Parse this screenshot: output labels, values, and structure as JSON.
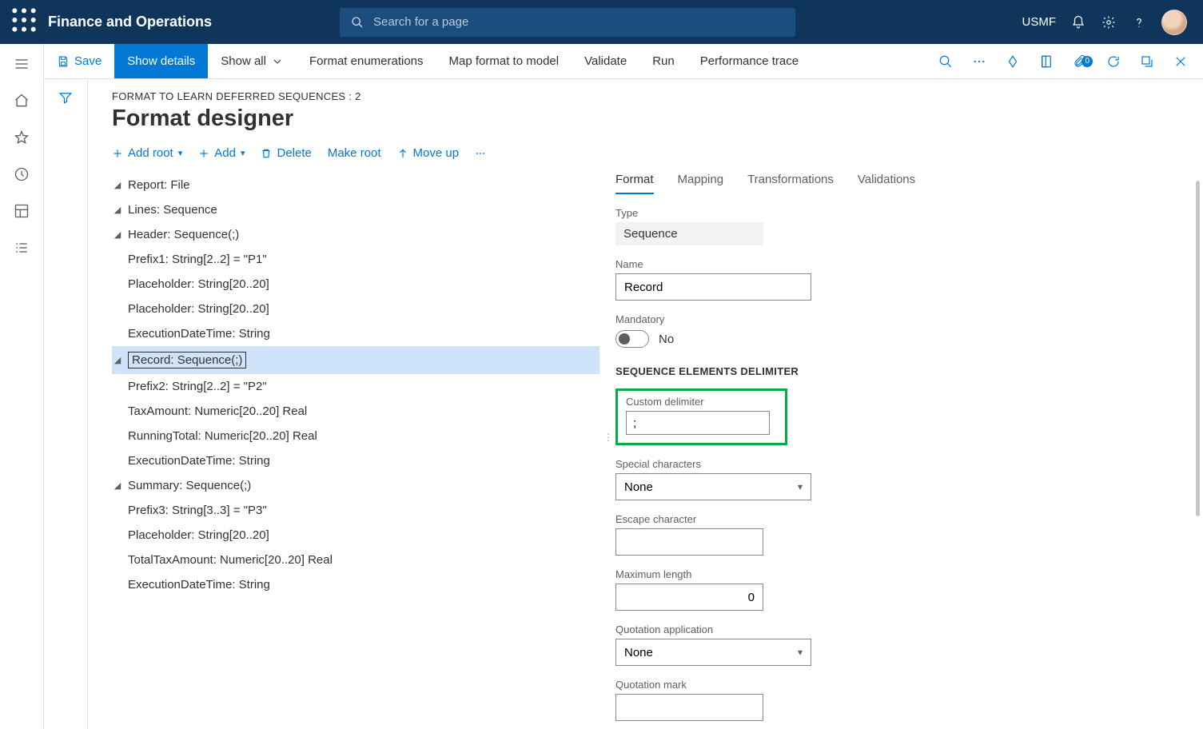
{
  "topbar": {
    "brand": "Finance and Operations",
    "search_placeholder": "Search for a page",
    "company": "USMF"
  },
  "actionbar": {
    "save": "Save",
    "show_details": "Show details",
    "show_all": "Show all",
    "format_enum": "Format enumerations",
    "map_format": "Map format to model",
    "validate": "Validate",
    "run": "Run",
    "perf_trace": "Performance trace",
    "attach_badge": "0"
  },
  "breadcrumb": "FORMAT TO LEARN DEFERRED SEQUENCES : 2",
  "page_title": "Format designer",
  "toolbar": {
    "add_root": "Add root",
    "add": "Add",
    "delete": "Delete",
    "make_root": "Make root",
    "move_up": "Move up"
  },
  "tree": [
    {
      "level": 0,
      "expander": true,
      "label": "Report: File"
    },
    {
      "level": 1,
      "expander": true,
      "label": "Lines: Sequence"
    },
    {
      "level": 2,
      "expander": true,
      "label": "Header: Sequence(;)"
    },
    {
      "level": 3,
      "expander": false,
      "label": "Prefix1: String[2..2] = \"P1\""
    },
    {
      "level": 3,
      "expander": false,
      "label": "Placeholder: String[20..20]"
    },
    {
      "level": 3,
      "expander": false,
      "label": "Placeholder: String[20..20]"
    },
    {
      "level": 3,
      "expander": false,
      "label": "ExecutionDateTime: String"
    },
    {
      "level": 2,
      "expander": true,
      "label": "Record: Sequence(;)",
      "selected": true
    },
    {
      "level": 3,
      "expander": false,
      "label": "Prefix2: String[2..2] = \"P2\""
    },
    {
      "level": 3,
      "expander": false,
      "label": "TaxAmount: Numeric[20..20] Real"
    },
    {
      "level": 3,
      "expander": false,
      "label": "RunningTotal: Numeric[20..20] Real"
    },
    {
      "level": 3,
      "expander": false,
      "label": "ExecutionDateTime: String"
    },
    {
      "level": 2,
      "expander": true,
      "label": "Summary: Sequence(;)"
    },
    {
      "level": 3,
      "expander": false,
      "label": "Prefix3: String[3..3] = \"P3\""
    },
    {
      "level": 3,
      "expander": false,
      "label": "Placeholder: String[20..20]"
    },
    {
      "level": 3,
      "expander": false,
      "label": "TotalTaxAmount: Numeric[20..20] Real"
    },
    {
      "level": 3,
      "expander": false,
      "label": "ExecutionDateTime: String"
    }
  ],
  "tabs": {
    "format": "Format",
    "mapping": "Mapping",
    "transformations": "Transformations",
    "validations": "Validations"
  },
  "props": {
    "type_label": "Type",
    "type_value": "Sequence",
    "name_label": "Name",
    "name_value": "Record",
    "mandatory_label": "Mandatory",
    "mandatory_value": "No",
    "section_delimiter": "SEQUENCE ELEMENTS DELIMITER",
    "custom_delim_label": "Custom delimiter",
    "custom_delim_value": ";",
    "special_chars_label": "Special characters",
    "special_chars_value": "None",
    "escape_label": "Escape character",
    "escape_value": "",
    "maxlen_label": "Maximum length",
    "maxlen_value": "0",
    "quot_app_label": "Quotation application",
    "quot_app_value": "None",
    "quot_mark_label": "Quotation mark",
    "quot_mark_value": ""
  },
  "colors": {
    "navy": "#10355b",
    "primary_blue": "#0078d4",
    "selection": "#cfe4fa",
    "highlight_green": "#0ba94a"
  }
}
